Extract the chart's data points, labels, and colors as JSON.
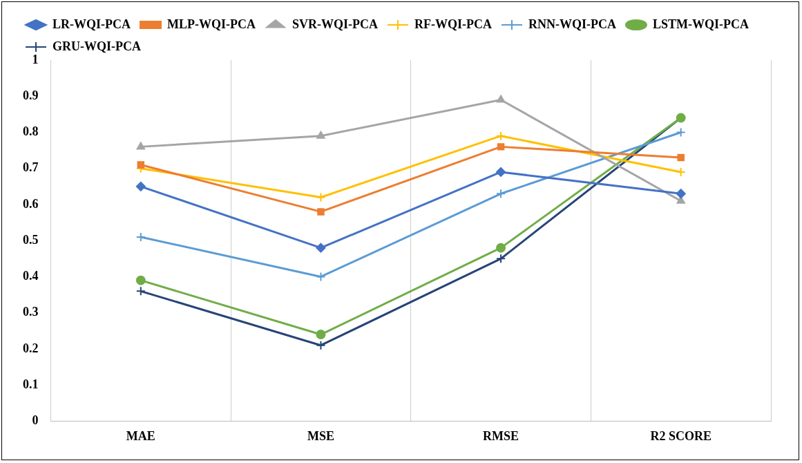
{
  "chart_data": {
    "type": "line",
    "categories": [
      "MAE",
      "MSE",
      "RMSE",
      "R2 SCORE"
    ],
    "series": [
      {
        "name": "LR-WQI-PCA",
        "color": "#4472c4",
        "marker": "diamond",
        "values": [
          0.65,
          0.48,
          0.69,
          0.63
        ]
      },
      {
        "name": "MLP-WQI-PCA",
        "color": "#ed7d31",
        "marker": "square",
        "values": [
          0.71,
          0.58,
          0.76,
          0.73
        ]
      },
      {
        "name": "SVR-WQI-PCA",
        "color": "#a5a5a5",
        "marker": "triangle",
        "values": [
          0.76,
          0.79,
          0.89,
          0.61
        ]
      },
      {
        "name": "RF-WQI-PCA",
        "color": "#ffc000",
        "marker": "cross",
        "values": [
          0.7,
          0.62,
          0.79,
          0.69
        ]
      },
      {
        "name": "RNN-WQI-PCA",
        "color": "#5b9bd5",
        "marker": "cross",
        "values": [
          0.51,
          0.4,
          0.63,
          0.8
        ]
      },
      {
        "name": "LSTM-WQI-PCA",
        "color": "#70ad47",
        "marker": "circle",
        "values": [
          0.39,
          0.24,
          0.48,
          0.84
        ]
      },
      {
        "name": "GRU-WQI-PCA",
        "color": "#264478",
        "marker": "cross",
        "values": [
          0.36,
          0.21,
          0.45,
          0.84
        ]
      }
    ],
    "ylim": [
      0,
      1
    ],
    "yticks": [
      0,
      0.1,
      0.2,
      0.3,
      0.4,
      0.5,
      0.6,
      0.7,
      0.8,
      0.9,
      1
    ],
    "grid": "x",
    "legend": "top",
    "line_style": "solid"
  }
}
